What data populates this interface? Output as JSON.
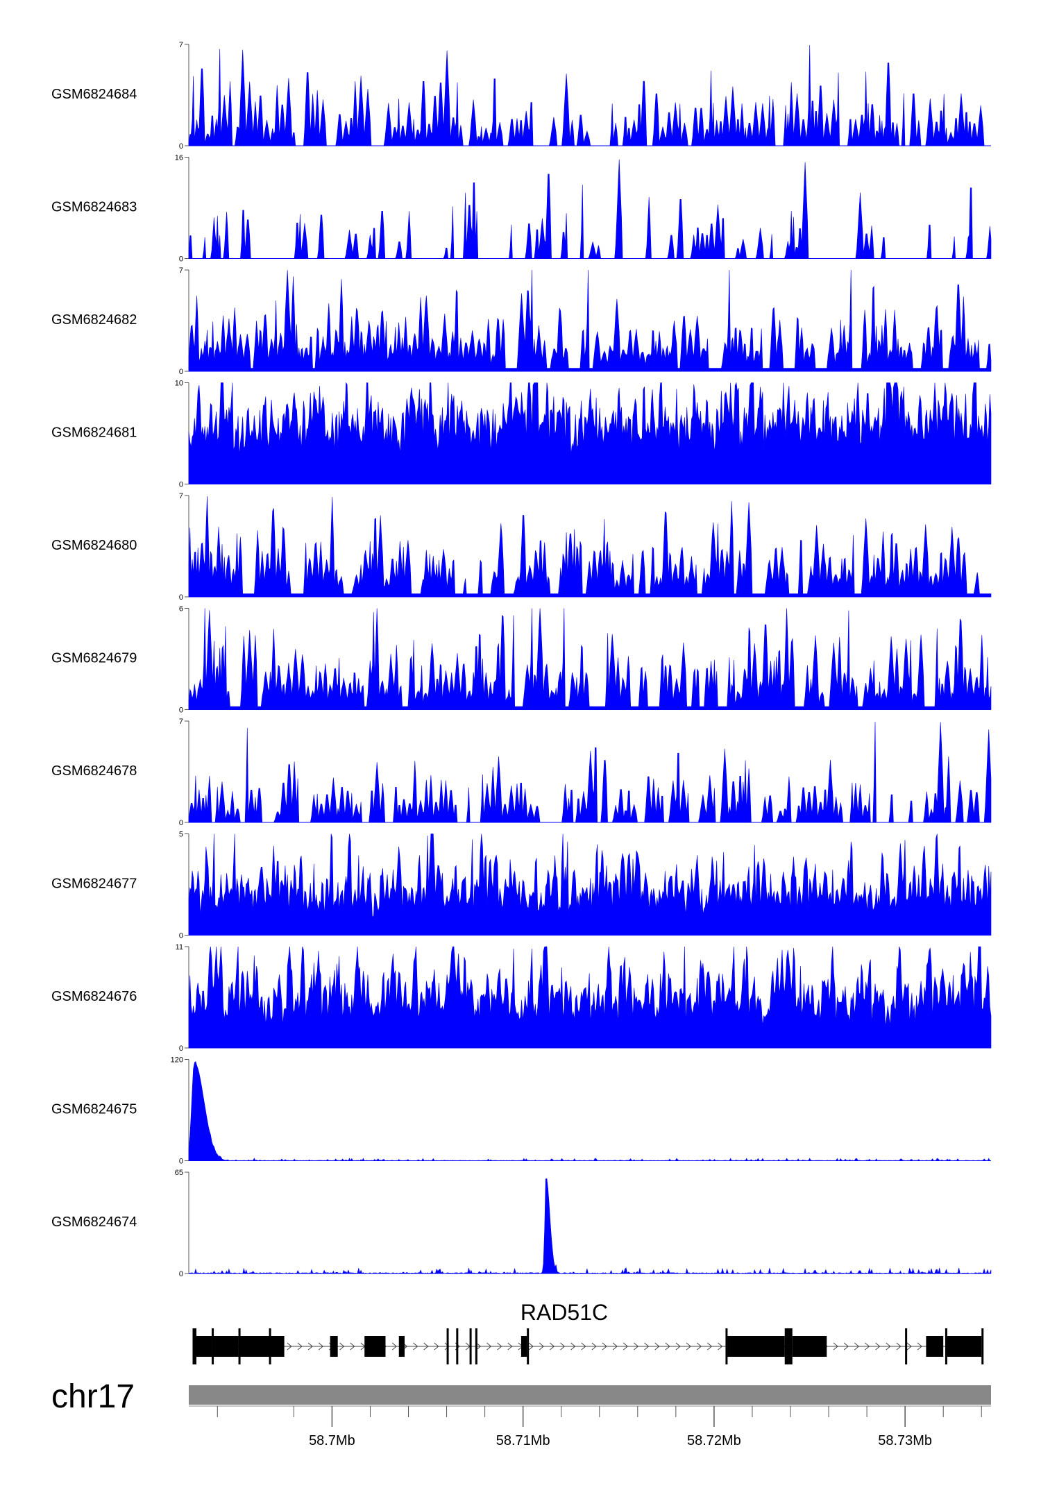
{
  "chart_data": {
    "type": "area",
    "chromosome": "chr17",
    "gene": "RAD51C",
    "region_mb": [
      58.6925,
      58.7345
    ],
    "x_ticks_mb": [
      58.7,
      58.71,
      58.72,
      58.73
    ],
    "x_tick_labels": [
      "58.7Mb",
      "58.71Mb",
      "58.72Mb",
      "58.73Mb"
    ],
    "x_minor_ticks_mb": [
      58.694,
      58.698,
      58.702,
      58.704,
      58.706,
      58.708,
      58.712,
      58.714,
      58.716,
      58.718,
      58.722,
      58.724,
      58.726,
      58.728,
      58.732,
      58.734
    ],
    "fill_color": "#0000ff",
    "tracks": [
      {
        "name": "GSM6824684",
        "ymax": 7,
        "ymin": 0,
        "seed": 11,
        "density": 0.85,
        "base": 0.0,
        "roughness": 0.9
      },
      {
        "name": "GSM6824683",
        "ymax": 16,
        "ymin": 0,
        "seed": 23,
        "density": 0.55,
        "base": 0.0,
        "roughness": 1.0
      },
      {
        "name": "GSM6824682",
        "ymax": 7,
        "ymin": 0,
        "seed": 37,
        "density": 0.9,
        "base": 0.05,
        "roughness": 0.8
      },
      {
        "name": "GSM6824681",
        "ymax": 10,
        "ymin": 0,
        "seed": 41,
        "density": 1.0,
        "base": 0.35,
        "roughness": 0.6
      },
      {
        "name": "GSM6824680",
        "ymax": 7,
        "ymin": 0,
        "seed": 53,
        "density": 0.85,
        "base": 0.05,
        "roughness": 0.85
      },
      {
        "name": "GSM6824679",
        "ymax": 6,
        "ymin": 0,
        "seed": 67,
        "density": 0.9,
        "base": 0.05,
        "roughness": 0.85
      },
      {
        "name": "GSM6824678",
        "ymax": 7,
        "ymin": 0,
        "seed": 71,
        "density": 0.8,
        "base": 0.0,
        "roughness": 0.9
      },
      {
        "name": "GSM6824677",
        "ymax": 5,
        "ymin": 0,
        "seed": 83,
        "density": 1.0,
        "base": 0.2,
        "roughness": 0.7
      },
      {
        "name": "GSM6824676",
        "ymax": 11,
        "ymin": 0,
        "seed": 97,
        "density": 1.0,
        "base": 0.25,
        "roughness": 0.6
      },
      {
        "name": "GSM6824675",
        "ymax": 120,
        "ymin": 0,
        "peaks": [
          {
            "mb": 58.6928,
            "height": 116,
            "width_mb": 0.0005
          }
        ],
        "noise": 1.2
      },
      {
        "name": "GSM6824674",
        "ymax": 65,
        "ymin": 0,
        "peaks": [
          {
            "mb": 58.7112,
            "height": 62,
            "width_mb": 0.0002
          }
        ],
        "noise": 1.5
      }
    ],
    "gene_model": {
      "strand": "+",
      "exons_mb": [
        [
          58.6927,
          58.6929,
          "tall"
        ],
        [
          58.6929,
          58.6937,
          "thick"
        ],
        [
          58.6937,
          58.6938,
          "tall"
        ],
        [
          58.6938,
          58.6951,
          "thick"
        ],
        [
          58.6951,
          58.6952,
          "tall"
        ],
        [
          58.6952,
          58.6975,
          "thick"
        ],
        [
          58.6967,
          58.6968,
          "tall"
        ],
        [
          58.6999,
          58.7003,
          "thick"
        ],
        [
          58.7017,
          58.7028,
          "thick"
        ],
        [
          58.7035,
          58.7038,
          "thick"
        ],
        [
          58.706,
          58.7061,
          "tall"
        ],
        [
          58.7065,
          58.7066,
          "tall"
        ],
        [
          58.7072,
          58.7073,
          "tall"
        ],
        [
          58.7075,
          58.7075,
          "tall"
        ],
        [
          58.7099,
          58.7102,
          "thick"
        ],
        [
          58.7102,
          58.7103,
          "tall"
        ],
        [
          58.7206,
          58.7207,
          "tall"
        ],
        [
          58.7207,
          58.7237,
          "thick"
        ],
        [
          58.7237,
          58.7241,
          "tall"
        ],
        [
          58.7241,
          58.7259,
          "thick"
        ],
        [
          58.73,
          58.7301,
          "tall"
        ],
        [
          58.7311,
          58.732,
          "thick"
        ],
        [
          58.7321,
          58.7322,
          "tall"
        ],
        [
          58.7322,
          58.734,
          "thick"
        ],
        [
          58.734,
          58.7341,
          "tall"
        ]
      ]
    }
  }
}
